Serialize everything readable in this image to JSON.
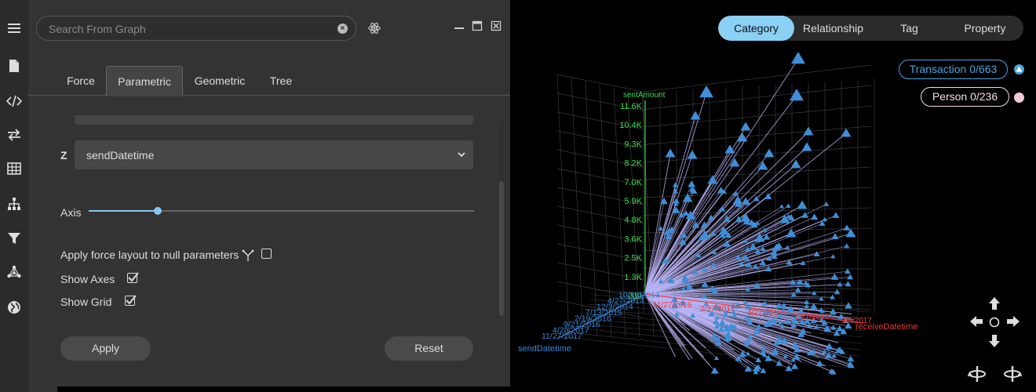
{
  "sidebar": {
    "icons": [
      "menu-icon",
      "document-icon",
      "code-icon",
      "swap-icon",
      "table-icon",
      "hierarchy-icon",
      "filter-icon",
      "network-icon",
      "globe-icon"
    ]
  },
  "search": {
    "placeholder": "Search From Graph",
    "clear_symbol": "×"
  },
  "tabs": [
    {
      "label": "Force",
      "active": false
    },
    {
      "label": "Parametric",
      "active": true
    },
    {
      "label": "Geometric",
      "active": false
    },
    {
      "label": "Tree",
      "active": false
    }
  ],
  "z_axis": {
    "label": "Z",
    "value": "sendDatetime"
  },
  "axis_slider": {
    "label": "Axis",
    "value": 0.18
  },
  "options": {
    "null_params": {
      "label": "Apply force layout to null parameters",
      "checked": false
    },
    "show_axes": {
      "label": "Show Axes",
      "checked": true
    },
    "show_grid": {
      "label": "Show Grid",
      "checked": true
    }
  },
  "buttons": {
    "apply": "Apply",
    "reset": "Reset"
  },
  "view_modes": [
    {
      "label": "Category",
      "active": true
    },
    {
      "label": "Relationship",
      "active": false
    },
    {
      "label": "Tag",
      "active": false
    },
    {
      "label": "Property",
      "active": false
    }
  ],
  "legend": {
    "transaction": "Transaction 0/663",
    "person": "Person 0/236",
    "transaction_color": "#4aa3e0",
    "person_color": "#f5c8d6"
  },
  "plot": {
    "y_axis_title": "sentAmount",
    "y_ticks": [
      "11.6K",
      "10.4K",
      "9.3K",
      "8.2K",
      "7.0K",
      "5.9K",
      "4.8K",
      "3.6K",
      "2.5K",
      "1.3K",
      "200"
    ],
    "x_axis_title": "receiveDatetime",
    "x_ticks": [
      "11/27/2016",
      "2/27/2017",
      "4/27/2017",
      "7/27/2017",
      "9/4/2017"
    ],
    "z_axis_title": "sendDatetime",
    "z_ticks": [
      "11/27/2017",
      "4/28/2017",
      "9/21/2016",
      "2/19/2016",
      "7/13/2015",
      "12/3/2014",
      "4/27/2014",
      "10/16/2013"
    ],
    "y_color": "#3ddc4f",
    "x_color": "#e23a3a",
    "z_color": "#3a86d6",
    "edge_color": "#b9b3f5",
    "node_color": "#3e8fd8"
  }
}
